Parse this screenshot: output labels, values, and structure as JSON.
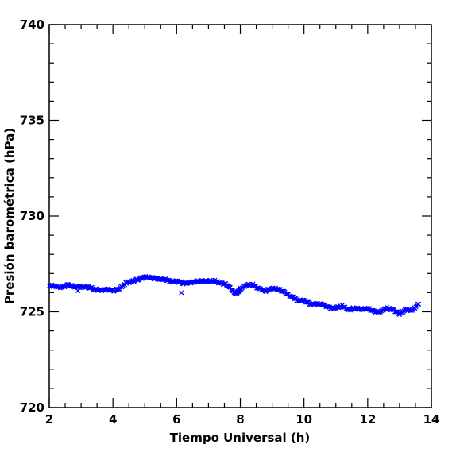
{
  "chart_data": {
    "type": "scatter",
    "title": "",
    "xlabel": "Tiempo Universal (h)",
    "ylabel": "Presión barométrica (hPa)",
    "xlim": [
      2,
      14
    ],
    "ylim": [
      720,
      740
    ],
    "x_ticks": [
      2,
      4,
      6,
      8,
      10,
      12,
      14
    ],
    "y_ticks": [
      720,
      725,
      730,
      735,
      740
    ],
    "x_tick_labels": [
      "2",
      "4",
      "6",
      "8",
      "10",
      "12",
      "14"
    ],
    "y_tick_labels": [
      "720",
      "725",
      "730",
      "735",
      "740"
    ],
    "marker": "x",
    "grid": false,
    "series": [
      {
        "color": "#0000ff",
        "x": [
          2.0,
          2.2,
          2.4,
          2.6,
          2.8,
          3.0,
          3.2,
          3.4,
          3.6,
          3.8,
          4.0,
          4.2,
          4.4,
          4.6,
          4.8,
          5.0,
          5.2,
          5.4,
          5.6,
          5.8,
          6.0,
          6.2,
          6.4,
          6.6,
          6.8,
          7.0,
          7.2,
          7.4,
          7.6,
          7.8,
          7.9,
          8.0,
          8.2,
          8.4,
          8.6,
          8.8,
          9.0,
          9.2,
          9.4,
          9.6,
          9.8,
          10.0,
          10.2,
          10.4,
          10.6,
          10.8,
          11.0,
          11.2,
          11.4,
          11.6,
          11.8,
          12.0,
          12.2,
          12.4,
          12.6,
          12.8,
          13.0,
          13.2,
          13.4,
          13.6
        ],
        "y": [
          726.4,
          726.3,
          726.3,
          726.4,
          726.3,
          726.3,
          726.3,
          726.2,
          726.1,
          726.2,
          726.1,
          726.2,
          726.5,
          726.6,
          726.7,
          726.8,
          726.8,
          726.7,
          726.7,
          726.6,
          726.6,
          726.5,
          726.5,
          726.6,
          726.6,
          726.6,
          726.6,
          726.5,
          726.4,
          726.0,
          726.0,
          726.2,
          726.4,
          726.4,
          726.2,
          726.1,
          726.2,
          726.2,
          726.0,
          725.8,
          725.6,
          725.6,
          725.4,
          725.4,
          725.4,
          725.2,
          725.2,
          725.3,
          725.1,
          725.2,
          725.1,
          725.2,
          725.0,
          725.0,
          725.2,
          725.1,
          724.9,
          725.1,
          725.1,
          725.4
        ]
      },
      {
        "color": "#0000ff",
        "x": [
          2.9,
          6.15
        ],
        "y": [
          726.1,
          726.0
        ]
      }
    ]
  }
}
